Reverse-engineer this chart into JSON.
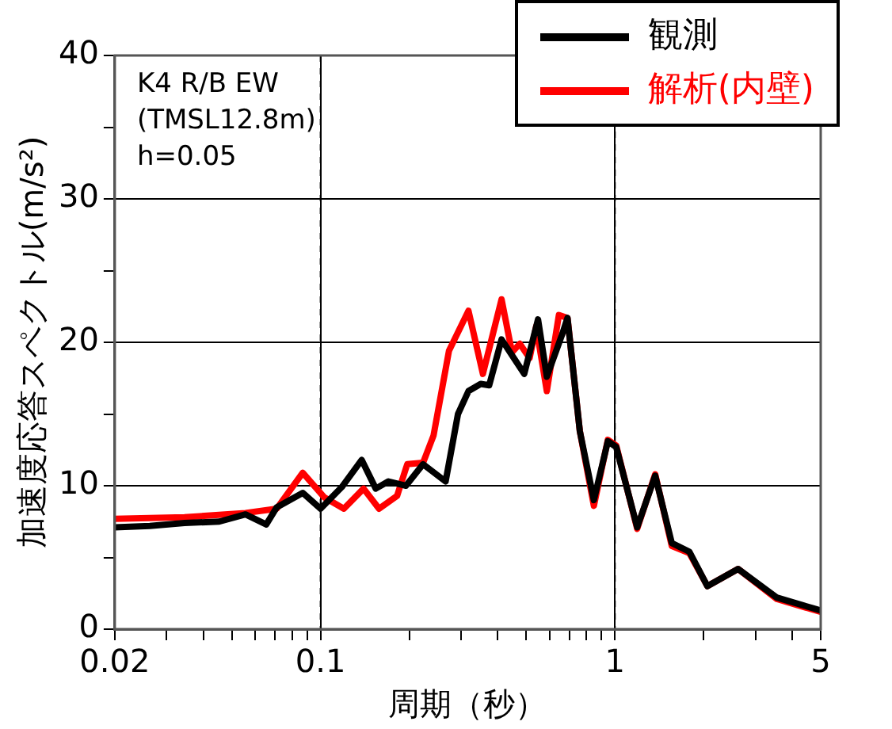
{
  "chart_data": {
    "type": "line",
    "xlabel": "周期（秒）",
    "ylabel": "加速度応答スペクトル(m/s²)",
    "annotations": [
      "K4 R/B EW",
      "(TMSL12.8m)",
      "h=0.05"
    ],
    "log": "x",
    "grid": true,
    "legend": "top right",
    "marker": "none",
    "line_style": "solid",
    "xlim": [
      0.02,
      5
    ],
    "xticks": [
      0.02,
      {
        "value": 0.03,
        "label": null
      },
      {
        "value": 0.04,
        "label": null
      },
      {
        "value": 0.05,
        "label": null
      },
      {
        "value": 0.06,
        "label": null
      },
      {
        "value": 0.07,
        "label": null
      },
      {
        "value": 0.08,
        "label": null
      },
      {
        "value": 0.09,
        "label": null
      },
      0.1,
      {
        "value": 0.2,
        "label": null
      },
      {
        "value": 0.3,
        "label": null
      },
      {
        "value": 0.4,
        "label": null
      },
      {
        "value": 0.5,
        "label": null
      },
      {
        "value": 0.6,
        "label": null
      },
      {
        "value": 0.7,
        "label": null
      },
      {
        "value": 0.8,
        "label": null
      },
      {
        "value": 0.9,
        "label": null
      },
      1,
      {
        "value": 2,
        "label": null
      },
      {
        "value": 3,
        "label": null
      },
      {
        "value": 4,
        "label": null
      },
      5
    ],
    "ylim": [
      0,
      40
    ],
    "yticks": [
      0,
      {
        "value": 5,
        "label": null
      },
      10,
      {
        "value": 15,
        "label": null
      },
      20,
      {
        "value": 25,
        "label": null
      },
      30,
      {
        "value": 35,
        "label": null
      },
      40
    ],
    "series": [
      {
        "name": "観測",
        "color": "#000000",
        "x": [
          0.02,
          0.0263,
          0.0345,
          0.0453,
          0.0556,
          0.0654,
          0.071,
          0.087,
          0.1,
          0.118,
          0.138,
          0.154,
          0.17,
          0.195,
          0.223,
          0.266,
          0.293,
          0.318,
          0.35,
          0.374,
          0.412,
          0.457,
          0.492,
          0.548,
          0.587,
          0.663,
          0.69,
          0.76,
          0.848,
          0.946,
          1.01,
          1.19,
          1.37,
          1.56,
          1.79,
          2.06,
          2.62,
          3.55,
          5
        ],
        "values": [
          7.1,
          7.2,
          7.4,
          7.5,
          8.0,
          7.3,
          8.5,
          9.5,
          8.4,
          9.9,
          11.8,
          9.8,
          10.3,
          10.0,
          11.5,
          10.3,
          15,
          16.6,
          17.1,
          17.0,
          20.2,
          18.8,
          17.8,
          21.6,
          17.6,
          20.6,
          21.7,
          13.8,
          9.0,
          13.1,
          12.7,
          7.1,
          10.7,
          6.0,
          5.4,
          3.0,
          4.2,
          2.2,
          1.3
        ]
      },
      {
        "name": "解析(内壁)",
        "color": "#ff0000",
        "x": [
          0.02,
          0.0345,
          0.0556,
          0.071,
          0.087,
          0.1028,
          0.12,
          0.14,
          0.158,
          0.182,
          0.197,
          0.223,
          0.242,
          0.273,
          0.318,
          0.356,
          0.412,
          0.447,
          0.475,
          0.513,
          0.54,
          0.587,
          0.645,
          0.69,
          0.76,
          0.848,
          0.946,
          1.01,
          1.19,
          1.37,
          1.56,
          1.79,
          2.06,
          2.62,
          3.55,
          5
        ],
        "values": [
          7.7,
          7.8,
          8.1,
          8.4,
          10.9,
          9.2,
          8.4,
          9.8,
          8.4,
          9.3,
          11.5,
          11.6,
          13.5,
          19.4,
          22.2,
          17.8,
          23,
          19.3,
          19.9,
          18.9,
          21.1,
          16.6,
          21.9,
          21.7,
          13.8,
          8.6,
          13.2,
          12.8,
          7.0,
          10.8,
          5.8,
          5.3,
          3.0,
          4.2,
          2.1,
          1.2
        ]
      }
    ]
  }
}
